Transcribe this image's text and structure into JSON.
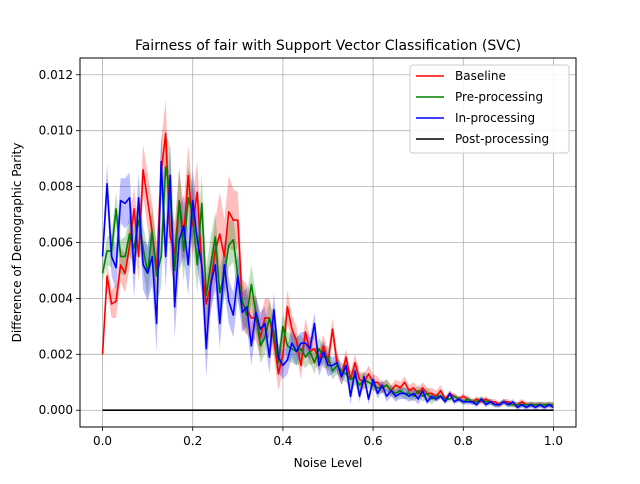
{
  "chart_data": {
    "type": "line",
    "title": "Fairness of fair with Support Vector Classification (SVC)",
    "xlabel": "Noise Level",
    "ylabel": "Difference of Demographic Parity",
    "xlim": [
      -0.05,
      1.05
    ],
    "ylim": [
      -0.0006,
      0.0126
    ],
    "xticks": [
      0.0,
      0.2,
      0.4,
      0.6,
      0.8,
      1.0
    ],
    "xtick_labels": [
      "0.0",
      "0.2",
      "0.4",
      "0.6",
      "0.8",
      "1.0"
    ],
    "yticks": [
      0.0,
      0.002,
      0.004,
      0.006,
      0.008,
      0.01,
      0.012
    ],
    "ytick_labels": [
      "0.000",
      "0.002",
      "0.004",
      "0.006",
      "0.008",
      "0.010",
      "0.012"
    ],
    "grid": true,
    "legend_position": "top-right",
    "x": [
      0.0,
      0.01,
      0.02,
      0.03,
      0.04,
      0.05,
      0.06,
      0.07,
      0.08,
      0.09,
      0.1,
      0.11,
      0.12,
      0.13,
      0.14,
      0.15,
      0.16,
      0.17,
      0.18,
      0.19,
      0.2,
      0.21,
      0.22,
      0.23,
      0.24,
      0.25,
      0.26,
      0.27,
      0.28,
      0.29,
      0.3,
      0.31,
      0.32,
      0.33,
      0.34,
      0.35,
      0.36,
      0.37,
      0.38,
      0.39,
      0.4,
      0.41,
      0.42,
      0.43,
      0.44,
      0.45,
      0.46,
      0.47,
      0.48,
      0.49,
      0.5,
      0.51,
      0.52,
      0.53,
      0.54,
      0.55,
      0.56,
      0.57,
      0.58,
      0.59,
      0.6,
      0.61,
      0.62,
      0.63,
      0.64,
      0.65,
      0.66,
      0.67,
      0.68,
      0.69,
      0.7,
      0.71,
      0.72,
      0.73,
      0.74,
      0.75,
      0.76,
      0.77,
      0.78,
      0.79,
      0.8,
      0.81,
      0.82,
      0.83,
      0.84,
      0.85,
      0.86,
      0.87,
      0.88,
      0.89,
      0.9,
      0.91,
      0.92,
      0.93,
      0.94,
      0.95,
      0.96,
      0.97,
      0.98,
      0.99,
      1.0
    ],
    "series": [
      {
        "name": "Baseline",
        "color": "#ff0000",
        "values": [
          0.002,
          0.0048,
          0.0038,
          0.0039,
          0.0052,
          0.0049,
          0.0059,
          0.0072,
          0.0055,
          0.0086,
          0.0075,
          0.0064,
          0.005,
          0.0085,
          0.0099,
          0.0062,
          0.0056,
          0.0075,
          0.0062,
          0.0084,
          0.0066,
          0.0078,
          0.0052,
          0.0038,
          0.0045,
          0.0057,
          0.0063,
          0.0055,
          0.0071,
          0.0068,
          0.0068,
          0.0038,
          0.0036,
          0.0033,
          0.0033,
          0.0026,
          0.0033,
          0.0033,
          0.0025,
          0.0013,
          0.002,
          0.0037,
          0.0029,
          0.0025,
          0.0016,
          0.0028,
          0.0021,
          0.0022,
          0.0018,
          0.0023,
          0.0017,
          0.0029,
          0.0017,
          0.0012,
          0.0019,
          0.0011,
          0.0017,
          0.0011,
          0.001,
          0.0013,
          0.001,
          0.001,
          0.0008,
          0.0009,
          0.0007,
          0.0009,
          0.0008,
          0.001,
          0.0007,
          0.0008,
          0.0006,
          0.0008,
          0.0006,
          0.0006,
          0.0005,
          0.0007,
          0.0004,
          0.0006,
          0.0005,
          0.0004,
          0.0005,
          0.0004,
          0.0003,
          0.0004,
          0.0003,
          0.0004,
          0.0003,
          0.0003,
          0.0002,
          0.0003,
          0.0003,
          0.0002,
          0.0002,
          0.0003,
          0.0002,
          0.0002,
          0.0002,
          0.0002,
          0.0002,
          0.0002,
          0.0002
        ],
        "band": [
          0.0003,
          0.0005,
          0.0005,
          0.0006,
          0.0006,
          0.0007,
          0.0008,
          0.0008,
          0.0009,
          0.0009,
          0.001,
          0.001,
          0.001,
          0.0011,
          0.0012,
          0.0011,
          0.0011,
          0.0011,
          0.0011,
          0.0011,
          0.0011,
          0.0011,
          0.001,
          0.001,
          0.001,
          0.0011,
          0.0015,
          0.0013,
          0.0013,
          0.0011,
          0.001,
          0.0009,
          0.0009,
          0.0008,
          0.0008,
          0.0007,
          0.0007,
          0.0007,
          0.0006,
          0.0006,
          0.0006,
          0.0006,
          0.0005,
          0.0005,
          0.0005,
          0.0005,
          0.0005,
          0.0005,
          0.0004,
          0.0004,
          0.0004,
          0.0004,
          0.0004,
          0.0003,
          0.0003,
          0.0003,
          0.0003,
          0.0003,
          0.0003,
          0.0003,
          0.0003,
          0.0002,
          0.0002,
          0.0002,
          0.0002,
          0.0002,
          0.0002,
          0.0002,
          0.0002,
          0.0002,
          0.0002,
          0.0002,
          0.0002,
          0.0002,
          0.0002,
          0.0002,
          0.0001,
          0.0001,
          0.0001,
          0.0001,
          0.0001,
          0.0001,
          0.0001,
          0.0001,
          0.0001,
          0.0001,
          0.0001,
          0.0001,
          0.0001,
          0.0001,
          0.0001,
          0.0001,
          0.0001,
          0.0001,
          0.0001,
          0.0001,
          0.0001,
          0.0001,
          0.0001,
          0.0001,
          0.0001
        ]
      },
      {
        "name": "Pre-processing",
        "color": "#008000",
        "values": [
          0.0049,
          0.0057,
          0.0057,
          0.0072,
          0.0055,
          0.0055,
          0.0063,
          0.0058,
          0.0068,
          0.0058,
          0.0049,
          0.0064,
          0.0048,
          0.0055,
          0.0087,
          0.0078,
          0.005,
          0.0075,
          0.0057,
          0.0076,
          0.007,
          0.0052,
          0.0074,
          0.0041,
          0.0052,
          0.0062,
          0.0042,
          0.0049,
          0.0059,
          0.0061,
          0.0048,
          0.0039,
          0.0034,
          0.0045,
          0.0035,
          0.0023,
          0.0026,
          0.0033,
          0.0028,
          0.0017,
          0.003,
          0.0023,
          0.0022,
          0.0021,
          0.0022,
          0.0019,
          0.0021,
          0.0017,
          0.0022,
          0.0019,
          0.0019,
          0.0014,
          0.0016,
          0.0014,
          0.0013,
          0.0011,
          0.0012,
          0.0009,
          0.0011,
          0.001,
          0.0009,
          0.0008,
          0.0008,
          0.0009,
          0.0007,
          0.0006,
          0.0007,
          0.0006,
          0.0006,
          0.0005,
          0.0007,
          0.0005,
          0.0006,
          0.0004,
          0.0005,
          0.0005,
          0.0004,
          0.0004,
          0.0005,
          0.0004,
          0.0003,
          0.0004,
          0.0003,
          0.0003,
          0.0004,
          0.0003,
          0.0003,
          0.0002,
          0.0002,
          0.0003,
          0.0002,
          0.0002,
          0.0002,
          0.0002,
          0.0002,
          0.0002,
          0.0002,
          0.0002,
          0.0002,
          0.0002,
          0.0002
        ],
        "band": [
          0.0003,
          0.0005,
          0.0006,
          0.0006,
          0.0006,
          0.0007,
          0.0007,
          0.0007,
          0.0008,
          0.0008,
          0.0009,
          0.0009,
          0.001,
          0.0011,
          0.0012,
          0.0016,
          0.0012,
          0.0012,
          0.0011,
          0.0011,
          0.0011,
          0.001,
          0.001,
          0.001,
          0.001,
          0.0009,
          0.0009,
          0.0009,
          0.0008,
          0.0008,
          0.0008,
          0.0007,
          0.0007,
          0.0007,
          0.0007,
          0.0006,
          0.0006,
          0.0006,
          0.0006,
          0.0005,
          0.0005,
          0.0005,
          0.0005,
          0.0005,
          0.0005,
          0.0004,
          0.0004,
          0.0004,
          0.0004,
          0.0004,
          0.0004,
          0.0003,
          0.0003,
          0.0003,
          0.0003,
          0.0003,
          0.0003,
          0.0003,
          0.0003,
          0.0002,
          0.0002,
          0.0002,
          0.0002,
          0.0002,
          0.0002,
          0.0002,
          0.0002,
          0.0002,
          0.0002,
          0.0002,
          0.0002,
          0.0002,
          0.0002,
          0.0002,
          0.0001,
          0.0001,
          0.0001,
          0.0001,
          0.0001,
          0.0001,
          0.0001,
          0.0001,
          0.0001,
          0.0001,
          0.0001,
          0.0001,
          0.0001,
          0.0001,
          0.0001,
          0.0001,
          0.0001,
          0.0001,
          0.0001,
          0.0001,
          0.0001,
          0.0001,
          0.0001,
          0.0001,
          0.0001,
          0.0001,
          0.0001
        ]
      },
      {
        "name": "In-processing",
        "color": "#0000ff",
        "values": [
          0.0055,
          0.0081,
          0.0055,
          0.0051,
          0.0075,
          0.0074,
          0.0076,
          0.0049,
          0.0076,
          0.0052,
          0.0049,
          0.0055,
          0.0031,
          0.0089,
          0.0055,
          0.0084,
          0.0037,
          0.0061,
          0.0066,
          0.0052,
          0.0075,
          0.0061,
          0.0052,
          0.0022,
          0.0045,
          0.0052,
          0.0031,
          0.0052,
          0.0039,
          0.0034,
          0.0048,
          0.0035,
          0.0037,
          0.0023,
          0.0035,
          0.0029,
          0.0031,
          0.0019,
          0.0036,
          0.0019,
          0.0016,
          0.0018,
          0.0024,
          0.0021,
          0.0024,
          0.0024,
          0.0022,
          0.0031,
          0.0016,
          0.0021,
          0.0016,
          0.0016,
          0.0017,
          0.0012,
          0.0016,
          0.0005,
          0.0014,
          0.0005,
          0.0012,
          0.0004,
          0.0011,
          0.0006,
          0.0009,
          0.0005,
          0.0007,
          0.0005,
          0.0006,
          0.0006,
          0.0005,
          0.0006,
          0.0004,
          0.0007,
          0.0003,
          0.0005,
          0.0004,
          0.0005,
          0.0003,
          0.0006,
          0.0003,
          0.0004,
          0.0003,
          0.0003,
          0.0003,
          0.0002,
          0.0004,
          0.0002,
          0.0003,
          0.0002,
          0.0002,
          0.0003,
          0.0002,
          0.0003,
          0.0001,
          0.0002,
          0.0001,
          0.0002,
          0.0001,
          0.0002,
          0.0001,
          0.0002,
          0.0001
        ],
        "band": [
          0.0004,
          0.0007,
          0.0007,
          0.0008,
          0.0008,
          0.0009,
          0.0009,
          0.0009,
          0.0009,
          0.0009,
          0.001,
          0.001,
          0.001,
          0.0011,
          0.0011,
          0.0011,
          0.0011,
          0.0011,
          0.0011,
          0.0011,
          0.0011,
          0.001,
          0.001,
          0.001,
          0.0009,
          0.0009,
          0.0009,
          0.0009,
          0.0008,
          0.0008,
          0.0008,
          0.0007,
          0.0007,
          0.0007,
          0.0006,
          0.0006,
          0.0006,
          0.0006,
          0.0006,
          0.0005,
          0.0005,
          0.0005,
          0.0005,
          0.0005,
          0.0004,
          0.0004,
          0.0004,
          0.0004,
          0.0004,
          0.0004,
          0.0004,
          0.0003,
          0.0003,
          0.0003,
          0.0003,
          0.0003,
          0.0003,
          0.0002,
          0.0002,
          0.0002,
          0.0002,
          0.0002,
          0.0002,
          0.0002,
          0.0002,
          0.0002,
          0.0002,
          0.0002,
          0.0002,
          0.0002,
          0.0002,
          0.0002,
          0.0001,
          0.0001,
          0.0001,
          0.0001,
          0.0001,
          0.0001,
          0.0001,
          0.0001,
          0.0001,
          0.0001,
          0.0001,
          0.0001,
          0.0001,
          0.0001,
          0.0001,
          0.0001,
          0.0001,
          0.0001,
          0.0001,
          0.0001,
          0.0001,
          0.0001,
          0.0001,
          0.0001,
          0.0001,
          0.0001,
          0.0001,
          0.0001,
          0.0001
        ]
      },
      {
        "name": "Post-processing",
        "color": "#000000",
        "values": [
          0.0,
          0.0,
          0.0,
          0.0,
          0.0,
          0.0,
          0.0,
          0.0,
          0.0,
          0.0,
          0.0,
          0.0,
          0.0,
          0.0,
          0.0,
          0.0,
          0.0,
          0.0,
          0.0,
          0.0,
          0.0,
          0.0,
          0.0,
          0.0,
          0.0,
          0.0,
          0.0,
          0.0,
          0.0,
          0.0,
          0.0,
          0.0,
          0.0,
          0.0,
          0.0,
          0.0,
          0.0,
          0.0,
          0.0,
          0.0,
          0.0,
          0.0,
          0.0,
          0.0,
          0.0,
          0.0,
          0.0,
          0.0,
          0.0,
          0.0,
          0.0,
          0.0,
          0.0,
          0.0,
          0.0,
          0.0,
          0.0,
          0.0,
          0.0,
          0.0,
          0.0,
          0.0,
          0.0,
          0.0,
          0.0,
          0.0,
          0.0,
          0.0,
          0.0,
          0.0,
          0.0,
          0.0,
          0.0,
          0.0,
          0.0,
          0.0,
          0.0,
          0.0,
          0.0,
          0.0,
          0.0,
          0.0,
          0.0,
          0.0,
          0.0,
          0.0,
          0.0,
          0.0,
          0.0,
          0.0,
          0.0,
          0.0,
          0.0,
          0.0,
          0.0,
          0.0,
          0.0,
          0.0,
          0.0,
          0.0,
          0.0
        ],
        "band": null
      }
    ]
  }
}
